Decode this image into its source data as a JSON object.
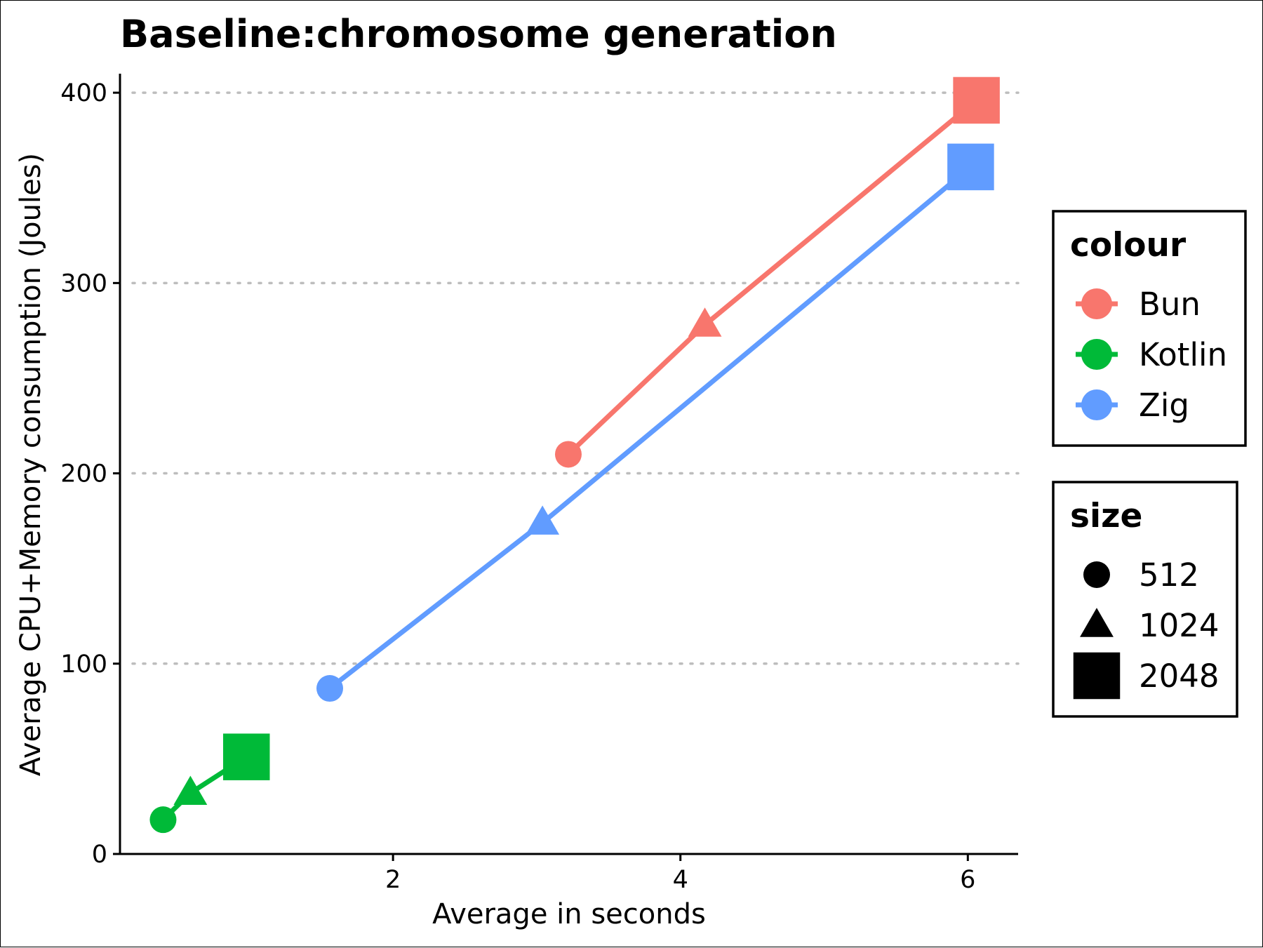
{
  "chart_data": {
    "type": "line",
    "title": "Baseline:chromosome generation",
    "xlabel": "Average in seconds",
    "ylabel": "Average CPU+Memory consumption (Joules)",
    "xlim": [
      0.1,
      6.35
    ],
    "ylim": [
      0,
      410
    ],
    "x_ticks": [
      2,
      4,
      6
    ],
    "x_tick_labels": [
      "2",
      "4",
      "6"
    ],
    "y_ticks": [
      0,
      100,
      200,
      300,
      400
    ],
    "y_tick_labels": [
      "0",
      "100",
      "200",
      "300",
      "400"
    ],
    "grid": "horizontal dotted",
    "series": [
      {
        "name": "Bun",
        "color": "#F8766D",
        "points": [
          {
            "size": "512",
            "x": 3.22,
            "y": 210
          },
          {
            "size": "1024",
            "x": 4.17,
            "y": 278
          },
          {
            "size": "2048",
            "x": 6.06,
            "y": 396
          }
        ]
      },
      {
        "name": "Kotlin",
        "color": "#00BA38",
        "points": [
          {
            "size": "512",
            "x": 0.4,
            "y": 18
          },
          {
            "size": "1024",
            "x": 0.59,
            "y": 32
          },
          {
            "size": "2048",
            "x": 0.98,
            "y": 51
          }
        ]
      },
      {
        "name": "Zig",
        "color": "#619CFF",
        "points": [
          {
            "size": "512",
            "x": 1.56,
            "y": 87
          },
          {
            "size": "1024",
            "x": 3.04,
            "y": 174
          },
          {
            "size": "2048",
            "x": 6.02,
            "y": 361
          }
        ]
      }
    ],
    "legends": [
      {
        "title": "colour",
        "entries": [
          "Bun",
          "Kotlin",
          "Zig"
        ]
      },
      {
        "title": "size",
        "entries": [
          "512",
          "1024",
          "2048"
        ],
        "shapes": [
          "circle",
          "triangle",
          "square"
        ]
      }
    ],
    "legend_position": "right"
  }
}
